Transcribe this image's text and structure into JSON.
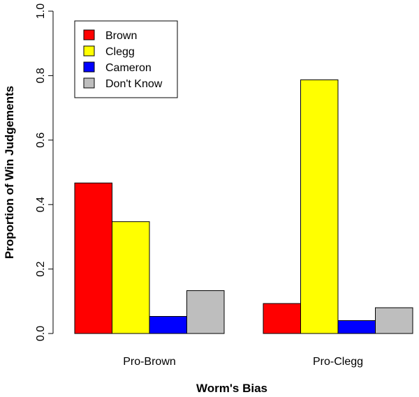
{
  "chart_data": {
    "type": "bar",
    "title": "",
    "xlabel": "Worm's Bias",
    "ylabel": "Proportion of Win Judgements",
    "categories": [
      "Pro-Brown",
      "Pro-Clegg"
    ],
    "series": [
      {
        "name": "Brown",
        "color": "#ff0000",
        "values": [
          0.467,
          0.093
        ]
      },
      {
        "name": "Clegg",
        "color": "#ffff00",
        "values": [
          0.347,
          0.787
        ]
      },
      {
        "name": "Cameron",
        "color": "#0000ff",
        "values": [
          0.053,
          0.04
        ]
      },
      {
        "name": "Don't Know",
        "color": "#bebebe",
        "values": [
          0.133,
          0.08
        ]
      }
    ],
    "ylim": [
      0,
      1.0
    ],
    "yticks": [
      "0.0",
      "0.2",
      "0.4",
      "0.6",
      "0.8",
      "1.0"
    ],
    "grid": false,
    "legend_position": "top-left"
  }
}
